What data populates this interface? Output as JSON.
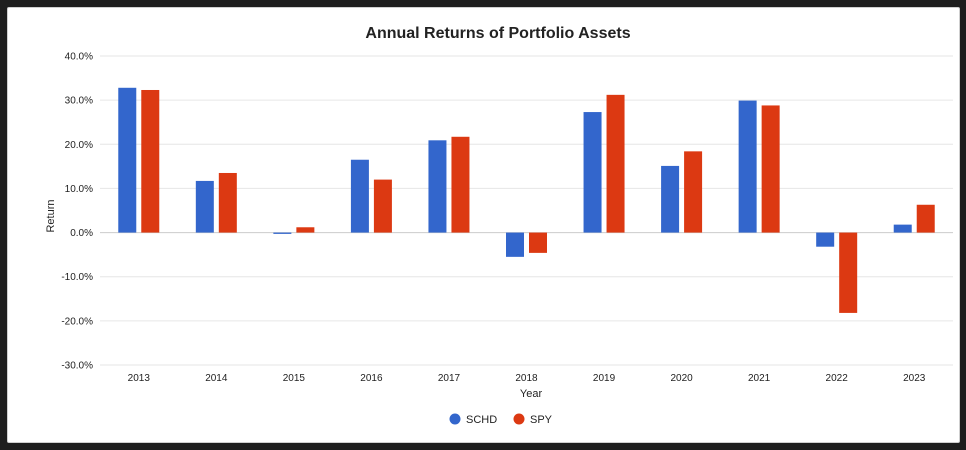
{
  "chart_data": {
    "type": "bar",
    "title": "Annual Returns of Portfolio Assets",
    "xlabel": "Year",
    "ylabel": "Return",
    "categories": [
      "2013",
      "2014",
      "2015",
      "2016",
      "2017",
      "2018",
      "2019",
      "2020",
      "2021",
      "2022",
      "2023"
    ],
    "series": [
      {
        "name": "SCHD",
        "color": "#3366cc",
        "values": [
          32.8,
          11.7,
          -0.3,
          16.5,
          20.9,
          -5.5,
          27.3,
          15.1,
          29.9,
          -3.2,
          1.8
        ]
      },
      {
        "name": "SPY",
        "color": "#dc3912",
        "values": [
          32.3,
          13.5,
          1.2,
          12.0,
          21.7,
          -4.6,
          31.2,
          18.4,
          28.8,
          -18.2,
          6.3
        ]
      }
    ],
    "ylim": [
      -30,
      40
    ],
    "yticks": [
      40,
      30,
      20,
      10,
      0,
      -10,
      -20,
      -30
    ],
    "ytick_labels": [
      "40.0%",
      "30.0%",
      "20.0%",
      "10.0%",
      "0.0%",
      "-10.0%",
      "-20.0%",
      "-30.0%"
    ],
    "grid": true,
    "legend_position": "bottom"
  }
}
